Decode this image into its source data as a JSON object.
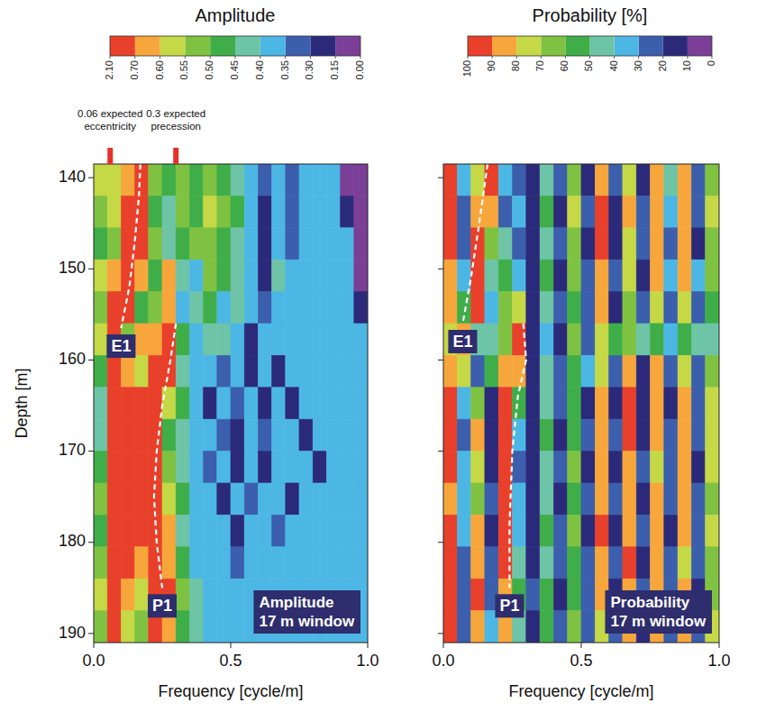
{
  "chart_data": [
    {
      "type": "heatmap",
      "colorbar_title": "Amplitude",
      "colorbar_lim": [
        2.1,
        0
      ],
      "colorbar_ticks": [
        {
          "value": 2.1,
          "label": "2.10"
        },
        {
          "value": 0.7,
          "label": "0.70"
        },
        {
          "value": 0.6,
          "label": "0.60"
        },
        0.55,
        {
          "value": 0.5,
          "label": "0.50"
        },
        0.45,
        {
          "value": 0.4,
          "label": "0.40"
        },
        0.35,
        {
          "value": 0.3,
          "label": "0.30"
        },
        0.15,
        {
          "value": 0,
          "label": "0.00"
        }
      ],
      "colors": [
        "#7b3f98",
        "#2b2a7a",
        "#3b5fad",
        "#4cb7e5",
        "#6dc4a6",
        "#3fae49",
        "#7fc241",
        "#c5d845",
        "#f7a63c",
        "#e8402a"
      ],
      "x_label": "Frequency [cycle/m]",
      "y_label": "Depth [m]",
      "tick_labels": true,
      "xlim": [
        0,
        1
      ],
      "ylim": [
        138.5,
        191
      ],
      "xticks": [
        {
          "value": 0,
          "label": "0.0"
        },
        {
          "value": 0.5,
          "label": "0.5"
        },
        {
          "value": 1,
          "label": "1.0"
        }
      ],
      "yticks": [
        140,
        150,
        160,
        170,
        180,
        190
      ],
      "x": [
        0.025,
        0.075,
        0.125,
        0.175,
        0.225,
        0.275,
        0.325,
        0.375,
        0.425,
        0.475,
        0.525,
        0.575,
        0.625,
        0.675,
        0.725,
        0.775,
        0.825,
        0.875,
        0.925,
        0.975
      ],
      "y": [
        140.25,
        143.75,
        147.25,
        150.75,
        154.25,
        157.75,
        161.25,
        164.75,
        168.25,
        171.75,
        175.25,
        178.75,
        182.25,
        185.75,
        189.25
      ],
      "values": [
        [
          0.55,
          0.55,
          0.62,
          0.8,
          0.5,
          0.45,
          0.5,
          0.45,
          0.52,
          0.47,
          0.42,
          0.38,
          0.3,
          0.36,
          0.33,
          0.37,
          0.36,
          0.38,
          0.1,
          0.1
        ],
        [
          0.5,
          0.55,
          0.7,
          0.9,
          0.48,
          0.42,
          0.5,
          0.47,
          0.55,
          0.5,
          0.45,
          0.38,
          0.25,
          0.37,
          0.32,
          0.38,
          0.37,
          0.36,
          0.2,
          0.1
        ],
        [
          0.45,
          0.52,
          0.9,
          0.75,
          0.5,
          0.4,
          0.45,
          0.5,
          0.52,
          0.48,
          0.43,
          0.37,
          0.2,
          0.38,
          0.3,
          0.38,
          0.37,
          0.36,
          0.36,
          0.1
        ],
        [
          0.55,
          0.6,
          0.95,
          0.6,
          0.45,
          0.62,
          0.42,
          0.38,
          0.5,
          0.45,
          0.4,
          0.38,
          0.25,
          0.4,
          0.36,
          0.37,
          0.36,
          0.37,
          0.38,
          0.1
        ],
        [
          0.5,
          0.8,
          0.9,
          0.48,
          0.5,
          0.65,
          0.38,
          0.4,
          0.45,
          0.38,
          0.42,
          0.36,
          0.32,
          0.38,
          0.37,
          0.36,
          0.38,
          0.37,
          0.37,
          0.2
        ],
        [
          0.55,
          0.85,
          0.5,
          0.6,
          0.62,
          0.8,
          0.45,
          0.36,
          0.4,
          0.42,
          0.37,
          0.2,
          0.38,
          0.36,
          0.37,
          0.38,
          0.36,
          0.37,
          0.38,
          0.37
        ],
        [
          0.45,
          0.7,
          0.62,
          0.55,
          0.75,
          0.72,
          0.42,
          0.38,
          0.36,
          0.3,
          0.37,
          0.2,
          0.38,
          0.2,
          0.38,
          0.37,
          0.36,
          0.38,
          0.37,
          0.38
        ],
        [
          0.42,
          0.8,
          0.9,
          0.9,
          0.95,
          0.55,
          0.45,
          0.36,
          0.2,
          0.37,
          0.3,
          0.38,
          0.2,
          0.37,
          0.25,
          0.38,
          0.37,
          0.36,
          0.37,
          0.36
        ],
        [
          0.4,
          0.85,
          0.9,
          0.95,
          0.9,
          0.45,
          0.4,
          0.38,
          0.37,
          0.3,
          0.2,
          0.37,
          0.3,
          0.38,
          0.36,
          0.2,
          0.37,
          0.38,
          0.36,
          0.37
        ],
        [
          0.48,
          0.9,
          0.95,
          0.95,
          0.85,
          0.5,
          0.42,
          0.37,
          0.3,
          0.38,
          0.25,
          0.37,
          0.2,
          0.38,
          0.37,
          0.36,
          0.2,
          0.37,
          0.38,
          0.37
        ],
        [
          0.5,
          0.95,
          0.8,
          0.9,
          0.9,
          0.55,
          0.45,
          0.38,
          0.37,
          0.2,
          0.36,
          0.3,
          0.37,
          0.38,
          0.2,
          0.37,
          0.36,
          0.38,
          0.36,
          0.37
        ],
        [
          0.45,
          1.0,
          0.75,
          0.85,
          0.9,
          0.65,
          0.42,
          0.36,
          0.38,
          0.37,
          0.2,
          0.37,
          0.38,
          0.3,
          0.37,
          0.36,
          0.38,
          0.37,
          0.36,
          0.38
        ],
        [
          0.5,
          1.2,
          0.7,
          0.65,
          0.95,
          0.6,
          0.45,
          0.38,
          0.36,
          0.37,
          0.3,
          0.38,
          0.37,
          0.36,
          0.38,
          0.37,
          0.36,
          0.38,
          0.37,
          0.36
        ],
        [
          0.55,
          1.1,
          0.62,
          0.55,
          0.95,
          0.7,
          0.5,
          0.4,
          0.37,
          0.36,
          0.38,
          0.37,
          0.36,
          0.38,
          0.37,
          0.36,
          0.38,
          0.36,
          0.37,
          0.38
        ],
        [
          0.5,
          0.9,
          0.55,
          0.5,
          0.75,
          0.62,
          0.48,
          0.42,
          0.38,
          0.37,
          0.36,
          0.38,
          0.37,
          0.36,
          0.38,
          0.37,
          0.36,
          0.38,
          0.37,
          0.36
        ]
      ],
      "annotations": [
        {
          "value": 0.06,
          "lines": [
            "0.06 expected",
            "eccentricity"
          ]
        },
        {
          "value": 0.3,
          "lines": [
            "0.3 expected",
            "precession"
          ]
        }
      ],
      "ridges": [
        {
          "name": "E1",
          "x": [
            0.17,
            0.165,
            0.15,
            0.13,
            0.1
          ],
          "y": [
            138.5,
            142,
            147,
            152,
            156.5
          ]
        },
        {
          "name": "P1",
          "x": [
            0.3,
            0.28,
            0.25,
            0.23,
            0.22,
            0.23,
            0.25
          ],
          "y": [
            156,
            160,
            165,
            170,
            175,
            180,
            185
          ]
        }
      ],
      "panel_label": [
        "Amplitude",
        "17 m window"
      ]
    },
    {
      "type": "heatmap",
      "colorbar_title": "Probability [%]",
      "colorbar_lim": [
        100,
        0
      ],
      "colorbar_ticks": [
        100,
        90,
        80,
        70,
        60,
        50,
        40,
        30,
        20,
        10,
        0
      ],
      "colors": [
        "#7b3f98",
        "#2b2a7a",
        "#3b5fad",
        "#4cb7e5",
        "#6dc4a6",
        "#3fae49",
        "#7fc241",
        "#c5d845",
        "#f7a63c",
        "#e8402a"
      ],
      "x_label": "Frequency [cycle/m]",
      "tick_labels": "x",
      "xlim": [
        0,
        1
      ],
      "ylim": [
        138.5,
        191
      ],
      "xticks": [
        {
          "value": 0,
          "label": "0.0"
        },
        {
          "value": 0.5,
          "label": "0.5"
        },
        {
          "value": 1,
          "label": "1.0"
        }
      ],
      "yticks": [
        140,
        150,
        160,
        170,
        180,
        190
      ],
      "x": [
        0.025,
        0.075,
        0.125,
        0.175,
        0.225,
        0.275,
        0.325,
        0.375,
        0.425,
        0.475,
        0.525,
        0.575,
        0.625,
        0.675,
        0.725,
        0.775,
        0.825,
        0.875,
        0.925,
        0.975
      ],
      "y": [
        140.25,
        143.75,
        147.25,
        150.75,
        154.25,
        157.75,
        161.25,
        164.75,
        168.25,
        171.75,
        175.25,
        178.75,
        182.25,
        185.75,
        189.25
      ],
      "values": [
        [
          95,
          30,
          70,
          90,
          30,
          20,
          15,
          45,
          20,
          60,
          15,
          85,
          20,
          75,
          15,
          80,
          40,
          85,
          20,
          60
        ],
        [
          90,
          20,
          80,
          85,
          25,
          30,
          10,
          50,
          15,
          70,
          20,
          90,
          15,
          80,
          20,
          85,
          30,
          80,
          25,
          70
        ],
        [
          95,
          25,
          92,
          60,
          40,
          20,
          12,
          45,
          20,
          65,
          15,
          92,
          10,
          75,
          25,
          88,
          20,
          85,
          15,
          65
        ],
        [
          85,
          35,
          95,
          40,
          55,
          35,
          10,
          55,
          15,
          60,
          25,
          85,
          20,
          70,
          15,
          80,
          35,
          80,
          30,
          60
        ],
        [
          80,
          55,
          90,
          30,
          60,
          70,
          15,
          40,
          20,
          55,
          20,
          80,
          15,
          65,
          20,
          75,
          25,
          75,
          20,
          55
        ],
        [
          75,
          85,
          40,
          45,
          65,
          90,
          10,
          35,
          15,
          60,
          25,
          70,
          50,
          60,
          45,
          55,
          30,
          50,
          40,
          45
        ],
        [
          85,
          70,
          20,
          55,
          85,
          80,
          15,
          40,
          25,
          55,
          30,
          75,
          20,
          85,
          15,
          80,
          20,
          75,
          20,
          60
        ],
        [
          90,
          35,
          60,
          15,
          95,
          50,
          10,
          45,
          20,
          50,
          15,
          80,
          15,
          90,
          10,
          85,
          15,
          80,
          25,
          70
        ],
        [
          92,
          20,
          80,
          10,
          95,
          30,
          15,
          50,
          15,
          55,
          20,
          85,
          20,
          92,
          15,
          80,
          20,
          85,
          20,
          75
        ],
        [
          90,
          30,
          75,
          15,
          92,
          25,
          10,
          45,
          20,
          60,
          15,
          80,
          15,
          88,
          20,
          75,
          25,
          80,
          15,
          70
        ],
        [
          88,
          35,
          65,
          20,
          95,
          35,
          15,
          40,
          15,
          55,
          20,
          85,
          20,
          80,
          15,
          85,
          20,
          85,
          20,
          65
        ],
        [
          92,
          30,
          80,
          15,
          90,
          30,
          10,
          50,
          20,
          60,
          15,
          90,
          15,
          85,
          20,
          80,
          15,
          80,
          25,
          70
        ],
        [
          95,
          25,
          85,
          20,
          90,
          40,
          15,
          45,
          25,
          50,
          20,
          85,
          20,
          90,
          15,
          88,
          20,
          75,
          20,
          60
        ],
        [
          90,
          20,
          90,
          25,
          85,
          50,
          20,
          55,
          15,
          55,
          25,
          80,
          15,
          80,
          20,
          85,
          25,
          80,
          15,
          65
        ],
        [
          95,
          25,
          85,
          30,
          80,
          45,
          15,
          50,
          20,
          60,
          20,
          75,
          20,
          85,
          15,
          80,
          20,
          85,
          20,
          70
        ]
      ],
      "ridges": [
        {
          "name": "E1",
          "x": [
            0.16,
            0.13,
            0.1,
            0.07
          ],
          "y": [
            138.5,
            145,
            151,
            156
          ]
        },
        {
          "name": "P1",
          "x": [
            0.29,
            0.3,
            0.27,
            0.25,
            0.24,
            0.24
          ],
          "y": [
            156,
            160,
            164,
            170,
            178,
            185
          ]
        }
      ],
      "panel_label": [
        "Probability",
        "17 m window"
      ]
    }
  ]
}
